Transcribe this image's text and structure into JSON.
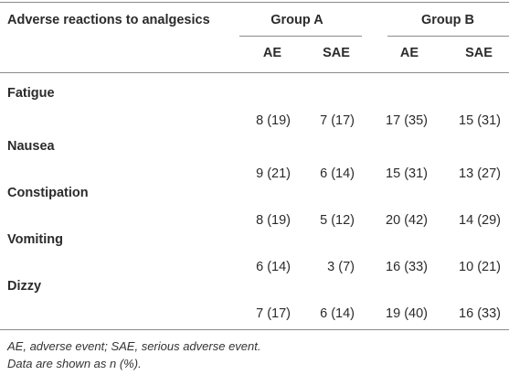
{
  "table": {
    "header": {
      "title": "Adverse reactions to analgesics",
      "group_a": "Group A",
      "group_b": "Group B",
      "sub": [
        "AE",
        "SAE",
        "AE",
        "SAE"
      ]
    },
    "rows": [
      {
        "label": "Fatigue",
        "values": [
          "8 (19)",
          "7 (17)",
          "17 (35)",
          "15 (31)"
        ]
      },
      {
        "label": "Nausea",
        "values": [
          "9 (21)",
          "6 (14)",
          "15 (31)",
          "13 (27)"
        ]
      },
      {
        "label": "Constipation",
        "values": [
          "8 (19)",
          "5 (12)",
          "20 (42)",
          "14 (29)"
        ]
      },
      {
        "label": "Vomiting",
        "values": [
          "6 (14)",
          "3 (7)",
          "16 (33)",
          "10 (21)"
        ]
      },
      {
        "label": "Dizzy",
        "values": [
          "7 (17)",
          "6 (14)",
          "19 (40)",
          "16 (33)"
        ]
      }
    ],
    "footnotes": [
      "AE, adverse event; SAE, serious adverse event.",
      "Data are shown as n (%)."
    ]
  }
}
